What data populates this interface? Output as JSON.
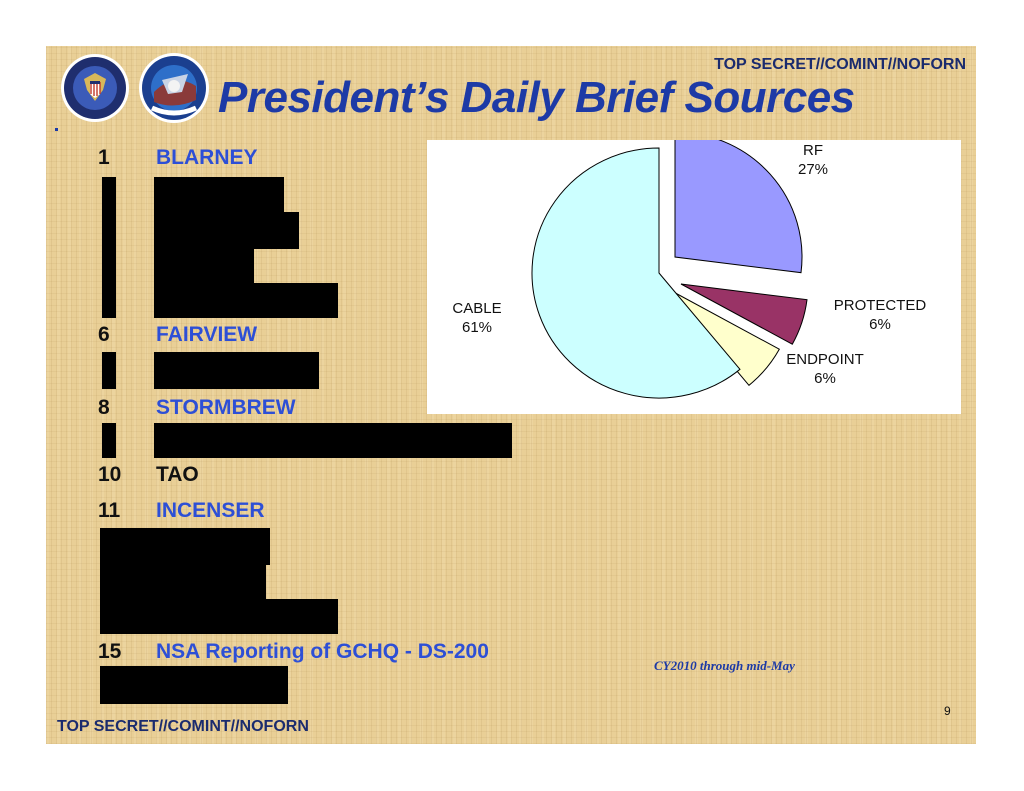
{
  "classification": {
    "top": "TOP SECRET//COMINT//NOFORN",
    "bottom": "TOP SECRET//COMINT//NOFORN"
  },
  "title": "President’s Daily Brief Sources",
  "sources": [
    {
      "number": "1",
      "name": "BLARNEY",
      "color": "#2d4fd6"
    },
    {
      "number": "6",
      "name": "FAIRVIEW",
      "color": "#2d4fd6"
    },
    {
      "number": "8",
      "name": "STORMBREW",
      "color": "#2d4fd6"
    },
    {
      "number": "10",
      "name": "TAO",
      "color": "#111111"
    },
    {
      "number": "11",
      "name": "INCENSER",
      "color": "#2d4fd6"
    },
    {
      "number": "15",
      "name": "NSA Reporting of GCHQ - DS-200",
      "color": "#2d4fd6"
    }
  ],
  "chart_data": {
    "type": "pie",
    "slices": [
      {
        "label": "RF",
        "value_label": "27%",
        "value": 27,
        "color": "#9999ff"
      },
      {
        "label": "PROTECTED",
        "value_label": "6%",
        "value": 6,
        "color": "#993366"
      },
      {
        "label": "ENDPOINT",
        "value_label": "6%",
        "value": 6,
        "color": "#ffffcc"
      },
      {
        "label": "CABLE",
        "value_label": "61%",
        "value": 61,
        "color": "#ccffff"
      }
    ],
    "exploded": true,
    "legend": "none"
  },
  "note": "CY2010 through mid-May",
  "page_number": "9"
}
